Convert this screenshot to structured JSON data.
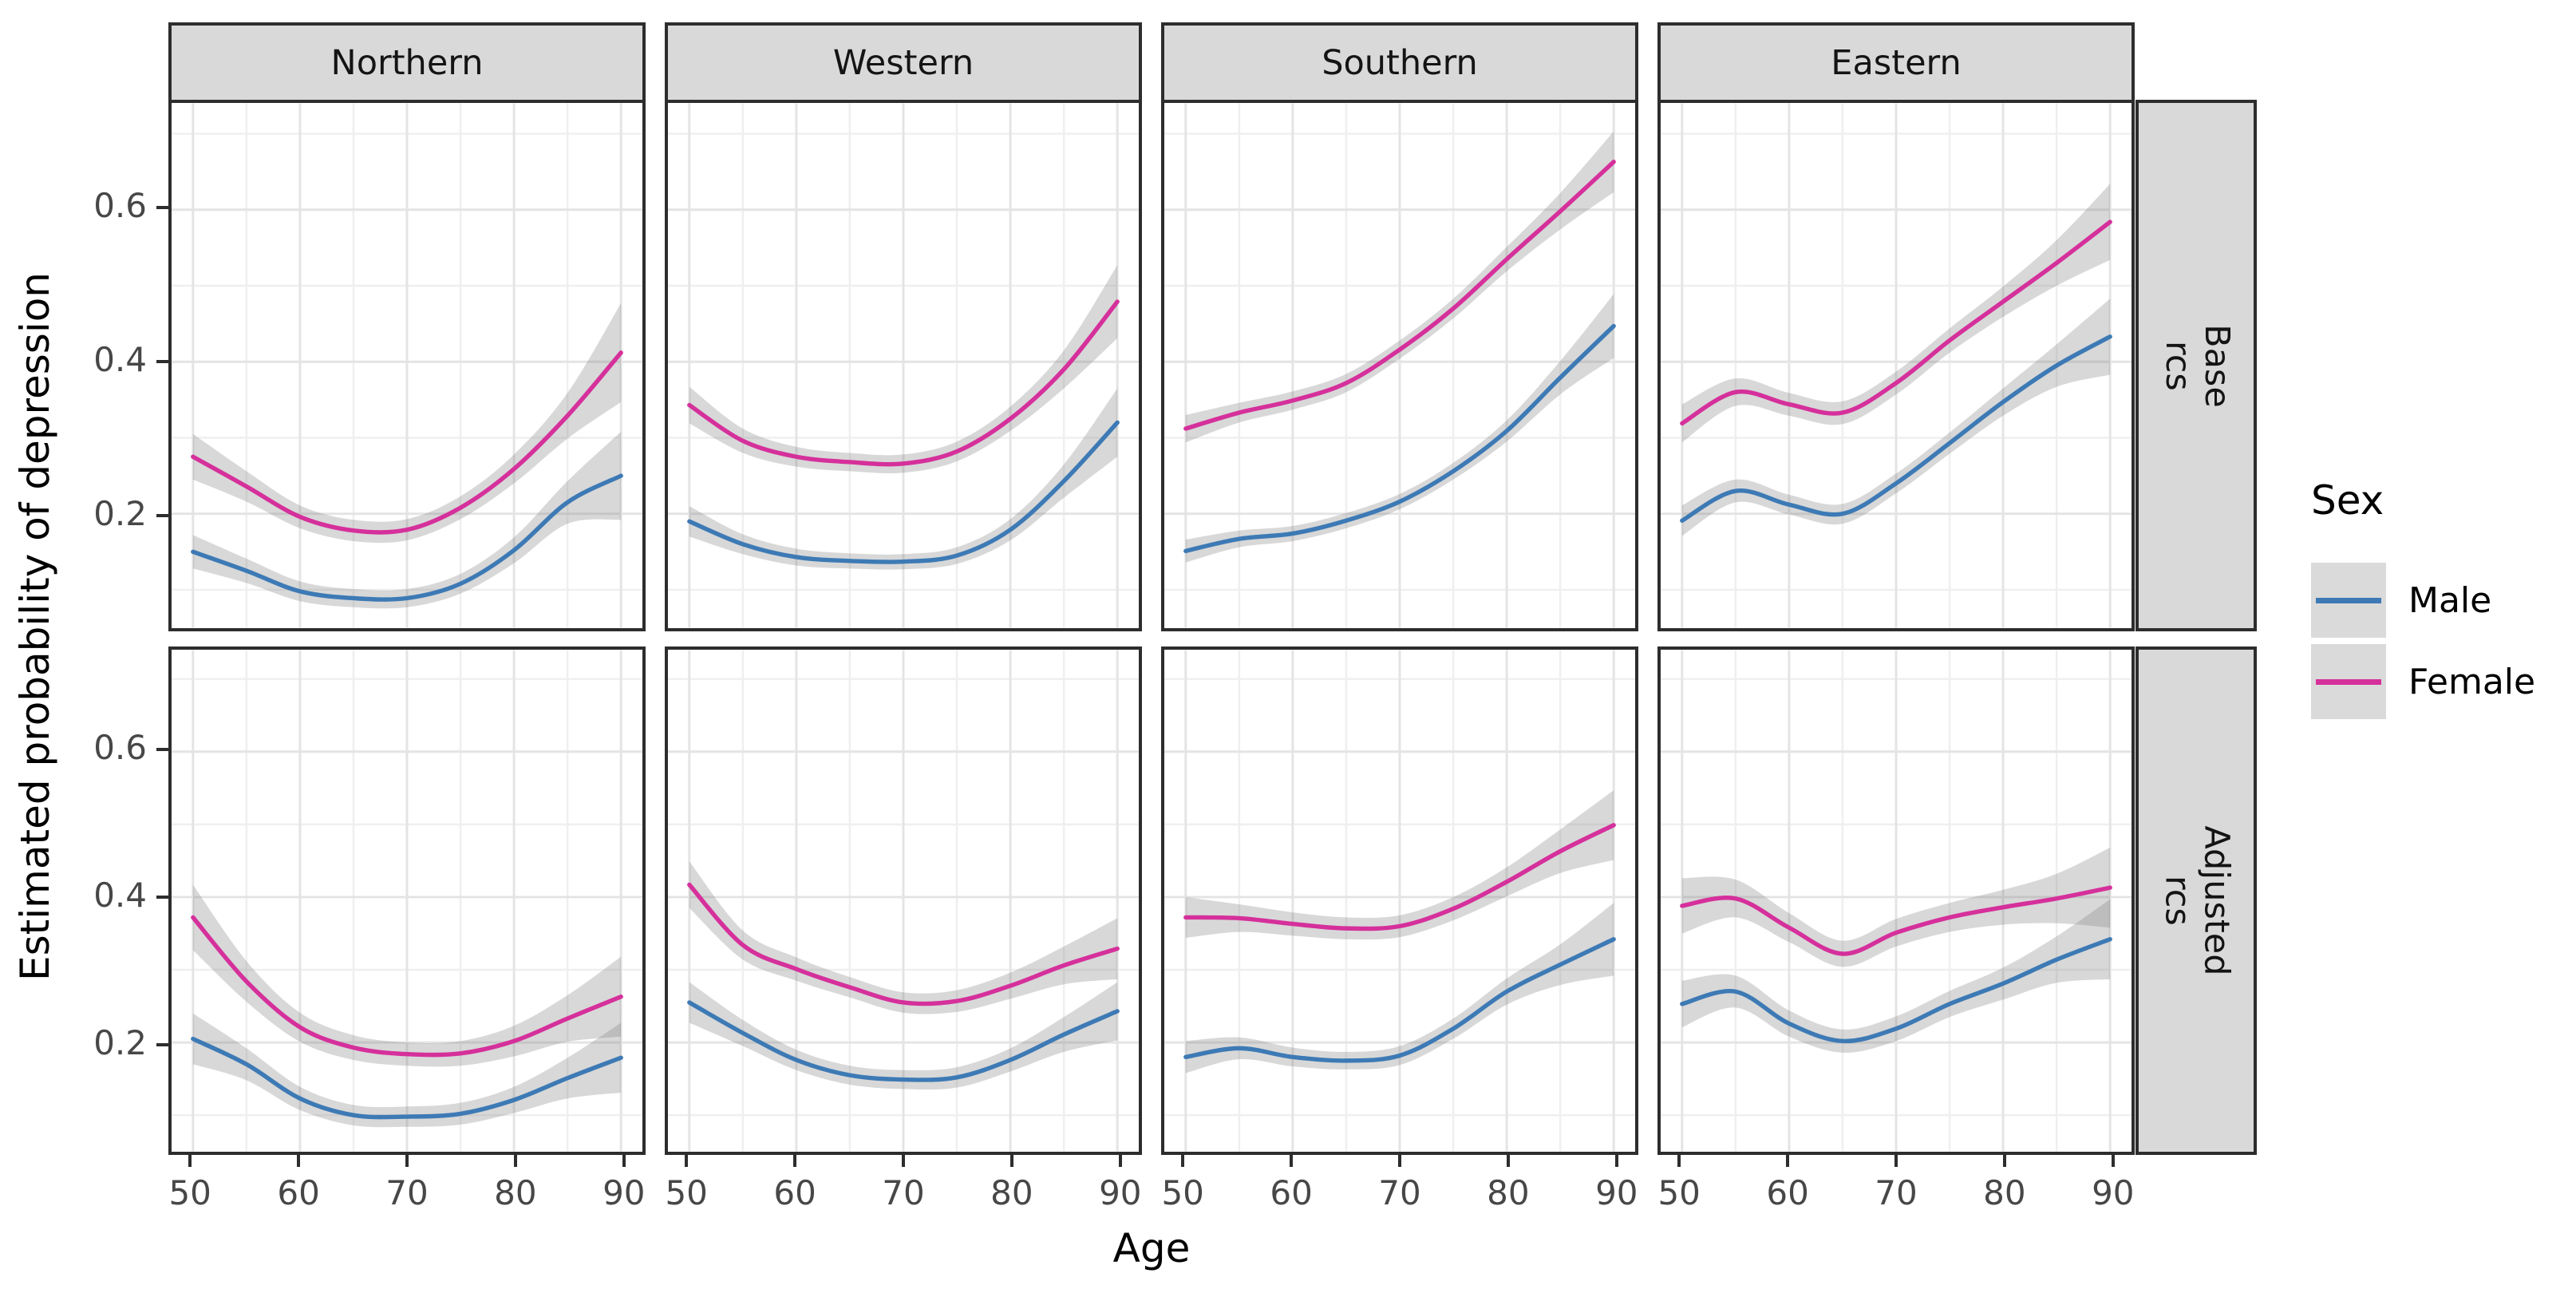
{
  "chart_data": {
    "type": "line",
    "title": "",
    "xlabel": "Age",
    "ylabel": "Estimated probability of depression",
    "x": [
      50,
      55,
      60,
      65,
      70,
      75,
      80,
      85,
      90
    ],
    "xlim": [
      48,
      92
    ],
    "ylim": [
      0.05,
      0.74
    ],
    "x_ticks": [
      50,
      60,
      70,
      80,
      90
    ],
    "x_tick_labels": [
      "50",
      "60",
      "70",
      "80",
      "90"
    ],
    "x_minor": [
      55,
      65,
      75,
      85
    ],
    "y_ticks": [
      0.2,
      0.4,
      0.6
    ],
    "y_tick_labels": [
      "0.2",
      "0.4",
      "0.6"
    ],
    "y_minor": [
      0.1,
      0.3,
      0.5,
      0.7
    ],
    "grid": true,
    "legend_position": "right",
    "col_facets": [
      "Northern",
      "Western",
      "Southern",
      "Eastern"
    ],
    "row_facets": [
      "Base\nrcs",
      "Adjusted\nrcs"
    ],
    "legend": {
      "title": "Sex",
      "entries": [
        {
          "label": "Male",
          "color": "#3D7AB5"
        },
        {
          "label": "Female",
          "color": "#D5309B"
        }
      ]
    },
    "ribbon_color": "#7F7F7F",
    "ribbon_opacity": 0.3,
    "panel_colors": {
      "strip_fill": "#D9D9D9",
      "border": "#2D2D2D",
      "grid_major": "#E4E4E4",
      "grid_minor": "#EFEFEF"
    },
    "series": [
      {
        "row": 0,
        "col": 0,
        "sex": "Male",
        "values": [
          0.15,
          0.125,
          0.098,
          0.089,
          0.089,
          0.108,
          0.152,
          0.215,
          0.25
        ],
        "ci": [
          0.022,
          0.016,
          0.013,
          0.012,
          0.012,
          0.013,
          0.017,
          0.028,
          0.058
        ]
      },
      {
        "row": 0,
        "col": 0,
        "sex": "Female",
        "values": [
          0.275,
          0.236,
          0.196,
          0.178,
          0.179,
          0.208,
          0.259,
          0.329,
          0.412
        ],
        "ci": [
          0.03,
          0.02,
          0.015,
          0.014,
          0.014,
          0.015,
          0.019,
          0.03,
          0.065
        ]
      },
      {
        "row": 0,
        "col": 1,
        "sex": "Male",
        "values": [
          0.19,
          0.16,
          0.143,
          0.138,
          0.137,
          0.145,
          0.179,
          0.243,
          0.32
        ],
        "ci": [
          0.02,
          0.013,
          0.011,
          0.01,
          0.01,
          0.011,
          0.014,
          0.022,
          0.045
        ]
      },
      {
        "row": 0,
        "col": 1,
        "sex": "Female",
        "values": [
          0.343,
          0.296,
          0.275,
          0.268,
          0.266,
          0.282,
          0.325,
          0.39,
          0.479
        ],
        "ci": [
          0.024,
          0.016,
          0.013,
          0.012,
          0.012,
          0.013,
          0.016,
          0.025,
          0.048
        ]
      },
      {
        "row": 0,
        "col": 2,
        "sex": "Male",
        "values": [
          0.151,
          0.167,
          0.174,
          0.191,
          0.216,
          0.256,
          0.309,
          0.379,
          0.447
        ],
        "ci": [
          0.015,
          0.011,
          0.01,
          0.01,
          0.01,
          0.011,
          0.014,
          0.022,
          0.042
        ]
      },
      {
        "row": 0,
        "col": 2,
        "sex": "Female",
        "values": [
          0.312,
          0.333,
          0.349,
          0.372,
          0.416,
          0.47,
          0.535,
          0.598,
          0.663
        ],
        "ci": [
          0.018,
          0.013,
          0.012,
          0.012,
          0.012,
          0.013,
          0.016,
          0.024,
          0.04
        ]
      },
      {
        "row": 0,
        "col": 3,
        "sex": "Male",
        "values": [
          0.191,
          0.23,
          0.212,
          0.2,
          0.24,
          0.293,
          0.347,
          0.395,
          0.433
        ],
        "ci": [
          0.02,
          0.015,
          0.013,
          0.013,
          0.013,
          0.014,
          0.018,
          0.028,
          0.05
        ]
      },
      {
        "row": 0,
        "col": 3,
        "sex": "Female",
        "values": [
          0.319,
          0.36,
          0.344,
          0.333,
          0.372,
          0.428,
          0.479,
          0.53,
          0.584
        ],
        "ci": [
          0.025,
          0.018,
          0.015,
          0.015,
          0.015,
          0.016,
          0.02,
          0.03,
          0.05
        ]
      },
      {
        "row": 1,
        "col": 0,
        "sex": "Male",
        "values": [
          0.205,
          0.17,
          0.123,
          0.1,
          0.098,
          0.102,
          0.121,
          0.151,
          0.179
        ],
        "ci": [
          0.035,
          0.022,
          0.016,
          0.014,
          0.014,
          0.015,
          0.018,
          0.028,
          0.048
        ]
      },
      {
        "row": 1,
        "col": 0,
        "sex": "Female",
        "values": [
          0.372,
          0.284,
          0.221,
          0.193,
          0.184,
          0.185,
          0.202,
          0.233,
          0.263
        ],
        "ci": [
          0.045,
          0.028,
          0.02,
          0.017,
          0.016,
          0.017,
          0.021,
          0.032,
          0.055
        ]
      },
      {
        "row": 1,
        "col": 1,
        "sex": "Male",
        "values": [
          0.255,
          0.213,
          0.176,
          0.155,
          0.149,
          0.152,
          0.176,
          0.211,
          0.243
        ],
        "ci": [
          0.028,
          0.018,
          0.014,
          0.013,
          0.013,
          0.014,
          0.016,
          0.024,
          0.04
        ]
      },
      {
        "row": 1,
        "col": 1,
        "sex": "Female",
        "values": [
          0.417,
          0.334,
          0.301,
          0.276,
          0.255,
          0.257,
          0.278,
          0.306,
          0.329
        ],
        "ci": [
          0.032,
          0.02,
          0.016,
          0.014,
          0.014,
          0.015,
          0.018,
          0.026,
          0.042
        ]
      },
      {
        "row": 1,
        "col": 2,
        "sex": "Male",
        "values": [
          0.18,
          0.192,
          0.18,
          0.175,
          0.182,
          0.219,
          0.27,
          0.307,
          0.342
        ],
        "ci": [
          0.022,
          0.015,
          0.013,
          0.012,
          0.013,
          0.014,
          0.018,
          0.028,
          0.05
        ]
      },
      {
        "row": 1,
        "col": 2,
        "sex": "Female",
        "values": [
          0.372,
          0.371,
          0.363,
          0.357,
          0.36,
          0.384,
          0.421,
          0.463,
          0.499
        ],
        "ci": [
          0.028,
          0.019,
          0.016,
          0.015,
          0.015,
          0.016,
          0.02,
          0.03,
          0.048
        ]
      },
      {
        "row": 1,
        "col": 3,
        "sex": "Male",
        "values": [
          0.253,
          0.27,
          0.226,
          0.202,
          0.219,
          0.253,
          0.281,
          0.314,
          0.342
        ],
        "ci": [
          0.032,
          0.022,
          0.018,
          0.016,
          0.017,
          0.018,
          0.022,
          0.032,
          0.055
        ]
      },
      {
        "row": 1,
        "col": 3,
        "sex": "Female",
        "values": [
          0.388,
          0.398,
          0.358,
          0.322,
          0.351,
          0.372,
          0.386,
          0.398,
          0.413
        ],
        "ci": [
          0.038,
          0.026,
          0.02,
          0.018,
          0.019,
          0.02,
          0.024,
          0.034,
          0.055
        ]
      }
    ]
  }
}
